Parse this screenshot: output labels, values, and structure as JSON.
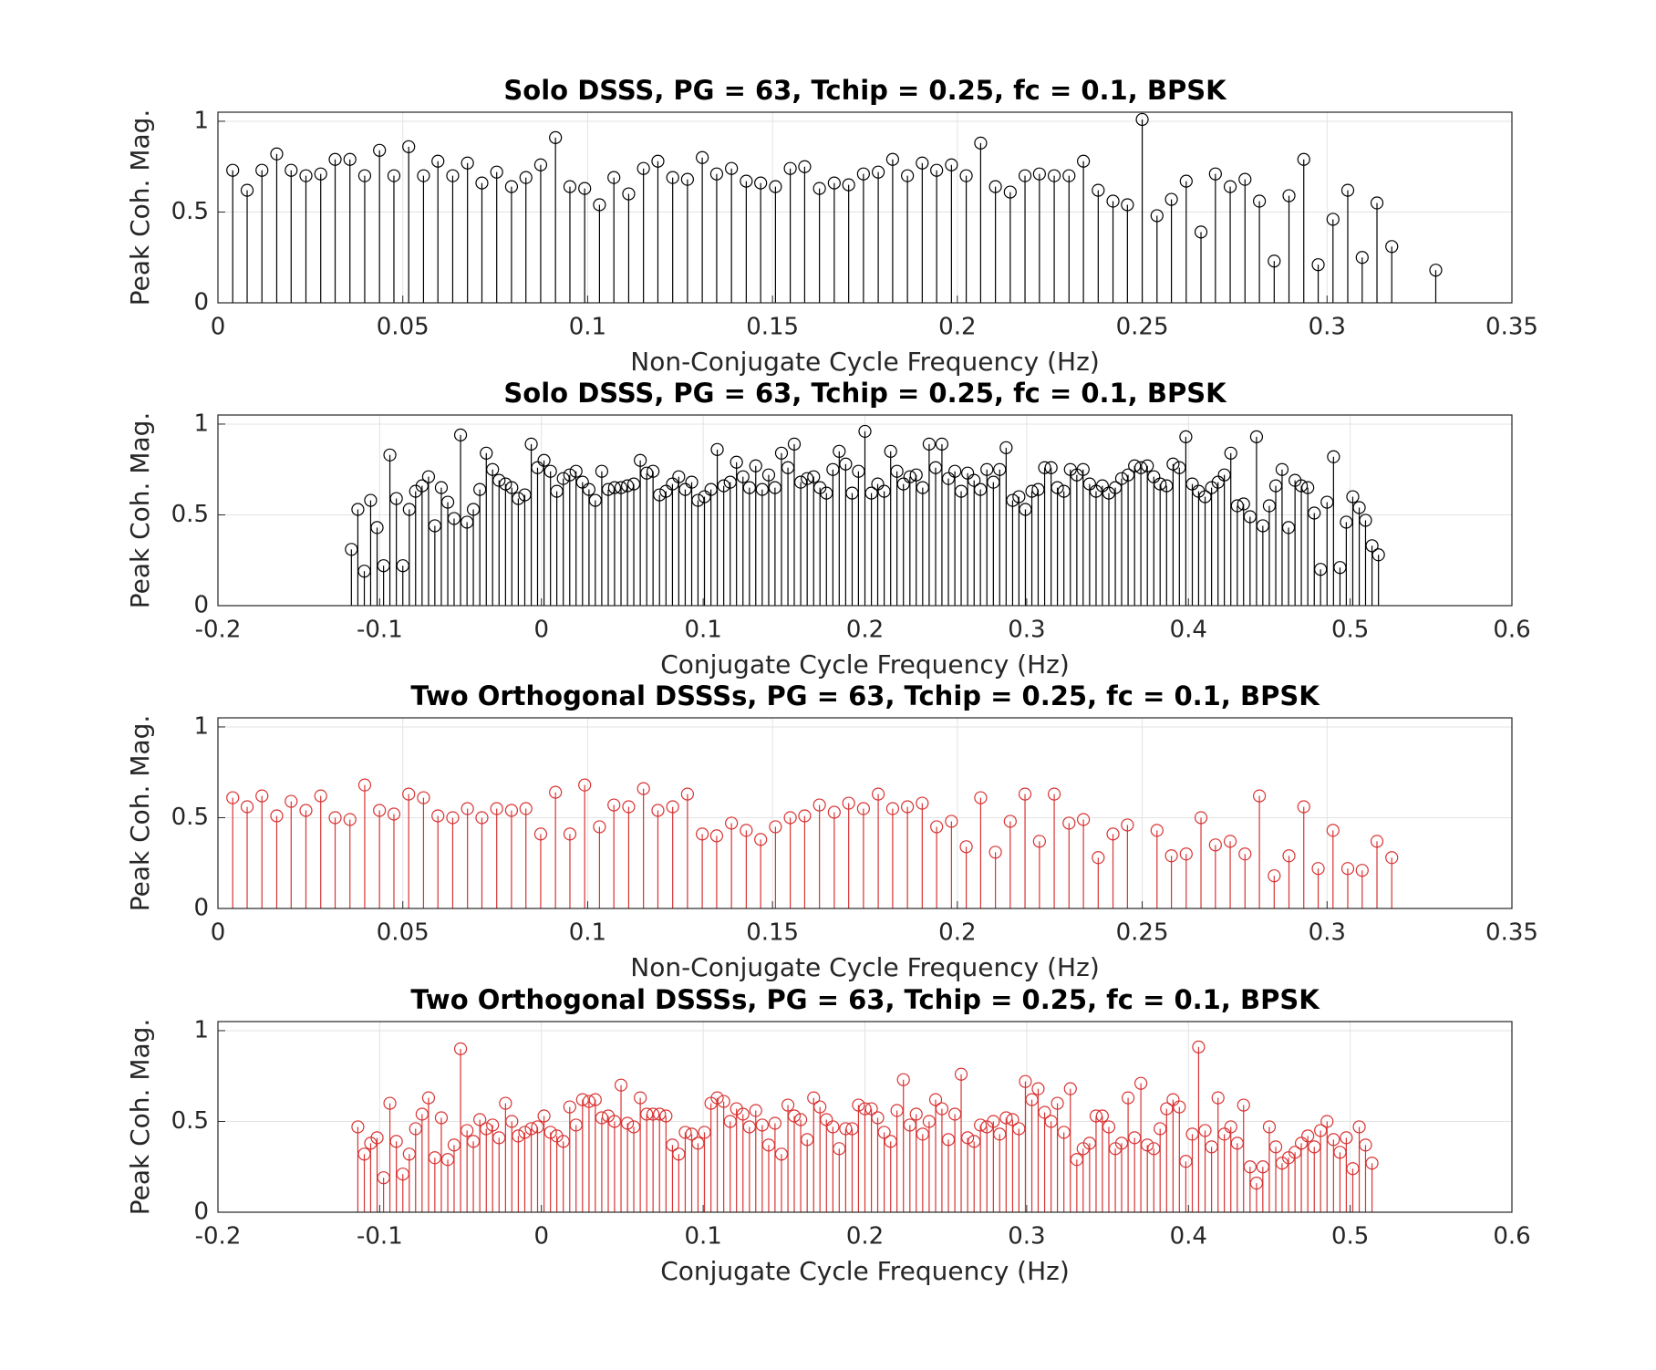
{
  "chart_data": [
    {
      "type": "stem",
      "title": "Solo DSSS, PG = 63, Tchip = 0.25, fc = 0.1, BPSK",
      "xlabel": "Non-Conjugate Cycle Frequency (Hz)",
      "ylabel": "Peak Coh. Mag.",
      "color": "#000000",
      "grid": true,
      "xlim": [
        0,
        0.35
      ],
      "xticks": [
        0,
        0.05,
        0.1,
        0.15,
        0.2,
        0.25,
        0.3,
        0.35
      ],
      "ylim": [
        0,
        1.05
      ],
      "yticks": [
        0,
        0.5,
        1
      ],
      "x": [
        0.004,
        0.0079,
        0.0119,
        0.0159,
        0.0198,
        0.0238,
        0.0278,
        0.0317,
        0.0357,
        0.0397,
        0.0437,
        0.0476,
        0.0516,
        0.0556,
        0.0595,
        0.0635,
        0.0675,
        0.0714,
        0.0754,
        0.0794,
        0.0833,
        0.0873,
        0.0913,
        0.0952,
        0.0992,
        0.1032,
        0.1071,
        0.1111,
        0.1151,
        0.119,
        0.123,
        0.127,
        0.131,
        0.1349,
        0.1389,
        0.1429,
        0.1468,
        0.1508,
        0.1548,
        0.1587,
        0.1627,
        0.1667,
        0.1706,
        0.1746,
        0.1786,
        0.1825,
        0.1865,
        0.1905,
        0.1944,
        0.1984,
        0.2024,
        0.2063,
        0.2103,
        0.2143,
        0.2183,
        0.2222,
        0.2262,
        0.2302,
        0.2341,
        0.2381,
        0.2421,
        0.246,
        0.25,
        0.254,
        0.2579,
        0.2619,
        0.2659,
        0.2698,
        0.2738,
        0.2778,
        0.2817,
        0.2857,
        0.2897,
        0.2937,
        0.2976,
        0.3016,
        0.3056,
        0.3095,
        0.3135,
        0.3175,
        0.3294
      ],
      "values": [
        0.73,
        0.62,
        0.73,
        0.82,
        0.73,
        0.7,
        0.71,
        0.79,
        0.79,
        0.7,
        0.84,
        0.7,
        0.86,
        0.7,
        0.78,
        0.7,
        0.77,
        0.66,
        0.72,
        0.64,
        0.69,
        0.76,
        0.91,
        0.64,
        0.63,
        0.54,
        0.69,
        0.6,
        0.74,
        0.78,
        0.69,
        0.68,
        0.8,
        0.71,
        0.74,
        0.67,
        0.66,
        0.64,
        0.74,
        0.75,
        0.63,
        0.66,
        0.65,
        0.71,
        0.72,
        0.79,
        0.7,
        0.77,
        0.73,
        0.76,
        0.7,
        0.88,
        0.64,
        0.61,
        0.7,
        0.71,
        0.7,
        0.7,
        0.78,
        0.62,
        0.56,
        0.54,
        1.01,
        0.48,
        0.57,
        0.67,
        0.39,
        0.71,
        0.64,
        0.68,
        0.56,
        0.23,
        0.59,
        0.79,
        0.21,
        0.46,
        0.62,
        0.25,
        0.55,
        0.31,
        0.18
      ]
    },
    {
      "type": "stem",
      "title": "Solo DSSS, PG = 63, Tchip = 0.25, fc = 0.1, BPSK",
      "xlabel": "Conjugate Cycle Frequency (Hz)",
      "ylabel": "Peak Coh. Mag.",
      "color": "#000000",
      "grid": true,
      "xlim": [
        -0.2,
        0.6
      ],
      "xticks": [
        -0.2,
        -0.1,
        0,
        0.1,
        0.2,
        0.3,
        0.4,
        0.5,
        0.6
      ],
      "ylim": [
        0,
        1.05
      ],
      "yticks": [
        0,
        0.5,
        1
      ],
      "x": [
        -0.1175,
        -0.1135,
        -0.1095,
        -0.1056,
        -0.1016,
        -0.0976,
        -0.0937,
        -0.0897,
        -0.0857,
        -0.0817,
        -0.0778,
        -0.0738,
        -0.0698,
        -0.0659,
        -0.0619,
        -0.0579,
        -0.054,
        -0.05,
        -0.046,
        -0.0421,
        -0.0381,
        -0.0341,
        -0.0302,
        -0.0262,
        -0.0222,
        -0.0183,
        -0.0143,
        -0.0103,
        -0.0063,
        -0.0024,
        0.0016,
        0.0056,
        0.0095,
        0.0135,
        0.0175,
        0.0214,
        0.0254,
        0.0294,
        0.0333,
        0.0373,
        0.0413,
        0.0452,
        0.0492,
        0.0532,
        0.0571,
        0.0611,
        0.0651,
        0.069,
        0.073,
        0.077,
        0.081,
        0.0849,
        0.0889,
        0.0929,
        0.0968,
        0.1008,
        0.1048,
        0.1087,
        0.1127,
        0.1167,
        0.1206,
        0.1246,
        0.1286,
        0.1325,
        0.1365,
        0.1405,
        0.1444,
        0.1484,
        0.1524,
        0.1563,
        0.1603,
        0.1643,
        0.1683,
        0.1722,
        0.1762,
        0.1802,
        0.1841,
        0.1881,
        0.1921,
        0.196,
        0.2,
        0.204,
        0.2079,
        0.2119,
        0.2159,
        0.2198,
        0.2238,
        0.2278,
        0.2317,
        0.2357,
        0.2397,
        0.2437,
        0.2476,
        0.2516,
        0.2556,
        0.2595,
        0.2635,
        0.2675,
        0.2714,
        0.2754,
        0.2794,
        0.2833,
        0.2873,
        0.2913,
        0.2952,
        0.2992,
        0.3032,
        0.3071,
        0.3111,
        0.3151,
        0.319,
        0.323,
        0.327,
        0.331,
        0.3349,
        0.3389,
        0.3429,
        0.3468,
        0.3508,
        0.3548,
        0.3587,
        0.3627,
        0.3667,
        0.3706,
        0.3746,
        0.3786,
        0.3825,
        0.3865,
        0.3905,
        0.3944,
        0.3984,
        0.4024,
        0.4063,
        0.4103,
        0.4143,
        0.4183,
        0.4222,
        0.4262,
        0.4302,
        0.4341,
        0.4381,
        0.4421,
        0.446,
        0.45,
        0.454,
        0.4579,
        0.4619,
        0.4659,
        0.4698,
        0.4738,
        0.4778,
        0.4817,
        0.4857,
        0.4897,
        0.4937,
        0.4976,
        0.5016,
        0.5056,
        0.5095,
        0.5135,
        0.5175
      ],
      "values": [
        0.31,
        0.53,
        0.19,
        0.58,
        0.43,
        0.22,
        0.83,
        0.59,
        0.22,
        0.53,
        0.63,
        0.66,
        0.71,
        0.44,
        0.65,
        0.57,
        0.48,
        0.94,
        0.46,
        0.53,
        0.64,
        0.84,
        0.75,
        0.69,
        0.67,
        0.65,
        0.59,
        0.61,
        0.89,
        0.76,
        0.8,
        0.74,
        0.63,
        0.7,
        0.72,
        0.74,
        0.68,
        0.64,
        0.58,
        0.74,
        0.64,
        0.65,
        0.65,
        0.66,
        0.67,
        0.8,
        0.73,
        0.74,
        0.61,
        0.63,
        0.67,
        0.71,
        0.64,
        0.68,
        0.58,
        0.6,
        0.64,
        0.86,
        0.66,
        0.68,
        0.79,
        0.71,
        0.65,
        0.77,
        0.64,
        0.72,
        0.65,
        0.84,
        0.76,
        0.89,
        0.68,
        0.7,
        0.71,
        0.65,
        0.62,
        0.75,
        0.85,
        0.78,
        0.62,
        0.74,
        0.96,
        0.62,
        0.67,
        0.63,
        0.85,
        0.74,
        0.67,
        0.71,
        0.72,
        0.65,
        0.89,
        0.76,
        0.89,
        0.7,
        0.74,
        0.63,
        0.73,
        0.69,
        0.64,
        0.75,
        0.68,
        0.75,
        0.87,
        0.58,
        0.6,
        0.53,
        0.63,
        0.64,
        0.76,
        0.76,
        0.65,
        0.63,
        0.75,
        0.72,
        0.75,
        0.67,
        0.63,
        0.66,
        0.62,
        0.65,
        0.7,
        0.72,
        0.77,
        0.76,
        0.77,
        0.71,
        0.67,
        0.66,
        0.78,
        0.76,
        0.93,
        0.67,
        0.63,
        0.6,
        0.65,
        0.68,
        0.72,
        0.84,
        0.55,
        0.56,
        0.49,
        0.93,
        0.44,
        0.55,
        0.66,
        0.75,
        0.43,
        0.69,
        0.66,
        0.65,
        0.51,
        0.2,
        0.57,
        0.82,
        0.21,
        0.46,
        0.6,
        0.54,
        0.47,
        0.33,
        0.28
      ]
    },
    {
      "type": "stem",
      "title": "Two Orthogonal DSSSs, PG = 63, Tchip = 0.25, fc = 0.1, BPSK",
      "xlabel": "Non-Conjugate Cycle Frequency (Hz)",
      "ylabel": "Peak Coh. Mag.",
      "color": "#d93333",
      "grid": true,
      "xlim": [
        0,
        0.35
      ],
      "xticks": [
        0,
        0.05,
        0.1,
        0.15,
        0.2,
        0.25,
        0.3,
        0.35
      ],
      "ylim": [
        0,
        1.05
      ],
      "yticks": [
        0,
        0.5,
        1
      ],
      "x": [
        0.004,
        0.0079,
        0.0119,
        0.0159,
        0.0198,
        0.0238,
        0.0278,
        0.0317,
        0.0357,
        0.0397,
        0.0437,
        0.0476,
        0.0516,
        0.0556,
        0.0595,
        0.0635,
        0.0675,
        0.0714,
        0.0754,
        0.0794,
        0.0833,
        0.0873,
        0.0913,
        0.0952,
        0.0992,
        0.1032,
        0.1071,
        0.1111,
        0.1151,
        0.119,
        0.123,
        0.127,
        0.131,
        0.1349,
        0.1389,
        0.1429,
        0.1468,
        0.1508,
        0.1548,
        0.1587,
        0.1627,
        0.1667,
        0.1706,
        0.1746,
        0.1786,
        0.1825,
        0.1865,
        0.1905,
        0.1944,
        0.1984,
        0.2024,
        0.2063,
        0.2103,
        0.2143,
        0.2183,
        0.2222,
        0.2262,
        0.2302,
        0.2341,
        0.2381,
        0.2421,
        0.246,
        0.254,
        0.2579,
        0.2619,
        0.2659,
        0.2698,
        0.2738,
        0.2778,
        0.2817,
        0.2857,
        0.2897,
        0.2937,
        0.2976,
        0.3016,
        0.3056,
        0.3095,
        0.3135,
        0.3175
      ],
      "values": [
        0.61,
        0.56,
        0.62,
        0.51,
        0.59,
        0.54,
        0.62,
        0.5,
        0.49,
        0.68,
        0.54,
        0.52,
        0.63,
        0.61,
        0.51,
        0.5,
        0.55,
        0.5,
        0.55,
        0.54,
        0.55,
        0.41,
        0.64,
        0.41,
        0.68,
        0.45,
        0.57,
        0.56,
        0.66,
        0.54,
        0.56,
        0.63,
        0.41,
        0.4,
        0.47,
        0.43,
        0.38,
        0.45,
        0.5,
        0.51,
        0.57,
        0.53,
        0.58,
        0.55,
        0.63,
        0.55,
        0.56,
        0.58,
        0.45,
        0.48,
        0.34,
        0.61,
        0.31,
        0.48,
        0.63,
        0.37,
        0.63,
        0.47,
        0.49,
        0.28,
        0.41,
        0.46,
        0.43,
        0.29,
        0.3,
        0.5,
        0.35,
        0.37,
        0.3,
        0.62,
        0.18,
        0.29,
        0.56,
        0.22,
        0.43,
        0.22,
        0.21,
        0.37,
        0.28
      ]
    },
    {
      "type": "stem",
      "title": "Two Orthogonal DSSSs, PG = 63, Tchip = 0.25, fc = 0.1, BPSK",
      "xlabel": "Conjugate Cycle Frequency (Hz)",
      "ylabel": "Peak Coh. Mag.",
      "color": "#d93333",
      "grid": true,
      "xlim": [
        -0.2,
        0.6
      ],
      "xticks": [
        -0.2,
        -0.1,
        0,
        0.1,
        0.2,
        0.3,
        0.4,
        0.5,
        0.6
      ],
      "ylim": [
        0,
        1.05
      ],
      "yticks": [
        0,
        0.5,
        1
      ],
      "x": [
        -0.1135,
        -0.1095,
        -0.1056,
        -0.1016,
        -0.0976,
        -0.0937,
        -0.0897,
        -0.0857,
        -0.0817,
        -0.0778,
        -0.0738,
        -0.0698,
        -0.0659,
        -0.0619,
        -0.0579,
        -0.054,
        -0.05,
        -0.046,
        -0.0421,
        -0.0381,
        -0.0341,
        -0.0302,
        -0.0262,
        -0.0222,
        -0.0183,
        -0.0143,
        -0.0103,
        -0.0063,
        -0.0024,
        0.0016,
        0.0056,
        0.0095,
        0.0135,
        0.0175,
        0.0214,
        0.0254,
        0.0294,
        0.0333,
        0.0373,
        0.0413,
        0.0452,
        0.0492,
        0.0532,
        0.0571,
        0.0611,
        0.0651,
        0.069,
        0.073,
        0.077,
        0.081,
        0.0849,
        0.0889,
        0.0929,
        0.0968,
        0.1008,
        0.1048,
        0.1087,
        0.1127,
        0.1167,
        0.1206,
        0.1246,
        0.1286,
        0.1325,
        0.1365,
        0.1405,
        0.1444,
        0.1484,
        0.1524,
        0.1563,
        0.1603,
        0.1643,
        0.1683,
        0.1722,
        0.1762,
        0.1802,
        0.1841,
        0.1881,
        0.1921,
        0.196,
        0.2,
        0.204,
        0.2079,
        0.2119,
        0.2159,
        0.2198,
        0.2238,
        0.2278,
        0.2317,
        0.2357,
        0.2397,
        0.2437,
        0.2476,
        0.2516,
        0.2556,
        0.2595,
        0.2635,
        0.2675,
        0.2714,
        0.2754,
        0.2794,
        0.2833,
        0.2873,
        0.2913,
        0.2952,
        0.2992,
        0.3032,
        0.3071,
        0.3111,
        0.3151,
        0.319,
        0.323,
        0.327,
        0.331,
        0.3349,
        0.3389,
        0.3429,
        0.3468,
        0.3508,
        0.3548,
        0.3587,
        0.3627,
        0.3667,
        0.3706,
        0.3746,
        0.3786,
        0.3825,
        0.3865,
        0.3905,
        0.3944,
        0.3984,
        0.4024,
        0.4063,
        0.4103,
        0.4143,
        0.4183,
        0.4222,
        0.4262,
        0.4302,
        0.4341,
        0.4381,
        0.4421,
        0.446,
        0.45,
        0.454,
        0.4579,
        0.4619,
        0.4659,
        0.4698,
        0.4738,
        0.4778,
        0.4817,
        0.4857,
        0.4897,
        0.4937,
        0.4976,
        0.5016,
        0.5056,
        0.5095,
        0.5135
      ],
      "values": [
        0.47,
        0.32,
        0.38,
        0.41,
        0.19,
        0.6,
        0.39,
        0.21,
        0.32,
        0.46,
        0.54,
        0.63,
        0.3,
        0.52,
        0.29,
        0.37,
        0.9,
        0.45,
        0.39,
        0.51,
        0.46,
        0.48,
        0.41,
        0.6,
        0.5,
        0.42,
        0.44,
        0.46,
        0.47,
        0.53,
        0.44,
        0.42,
        0.39,
        0.58,
        0.48,
        0.62,
        0.61,
        0.62,
        0.52,
        0.53,
        0.5,
        0.7,
        0.49,
        0.47,
        0.63,
        0.54,
        0.54,
        0.54,
        0.53,
        0.37,
        0.32,
        0.44,
        0.43,
        0.38,
        0.44,
        0.6,
        0.63,
        0.61,
        0.5,
        0.57,
        0.54,
        0.47,
        0.56,
        0.48,
        0.37,
        0.49,
        0.32,
        0.59,
        0.53,
        0.51,
        0.4,
        0.63,
        0.58,
        0.51,
        0.47,
        0.35,
        0.46,
        0.46,
        0.59,
        0.57,
        0.57,
        0.52,
        0.44,
        0.39,
        0.56,
        0.73,
        0.48,
        0.54,
        0.43,
        0.5,
        0.62,
        0.57,
        0.4,
        0.54,
        0.76,
        0.41,
        0.39,
        0.48,
        0.47,
        0.5,
        0.43,
        0.52,
        0.51,
        0.46,
        0.72,
        0.62,
        0.68,
        0.55,
        0.5,
        0.6,
        0.44,
        0.68,
        0.29,
        0.35,
        0.38,
        0.53,
        0.53,
        0.47,
        0.35,
        0.38,
        0.63,
        0.41,
        0.71,
        0.37,
        0.35,
        0.46,
        0.57,
        0.62,
        0.58,
        0.28,
        0.43,
        0.91,
        0.45,
        0.36,
        0.63,
        0.43,
        0.47,
        0.38,
        0.59,
        0.25,
        0.16,
        0.25,
        0.47,
        0.36,
        0.27,
        0.3,
        0.33,
        0.38,
        0.42,
        0.36,
        0.45,
        0.5,
        0.4,
        0.33,
        0.41,
        0.24,
        0.47,
        0.37,
        0.27
      ]
    }
  ]
}
